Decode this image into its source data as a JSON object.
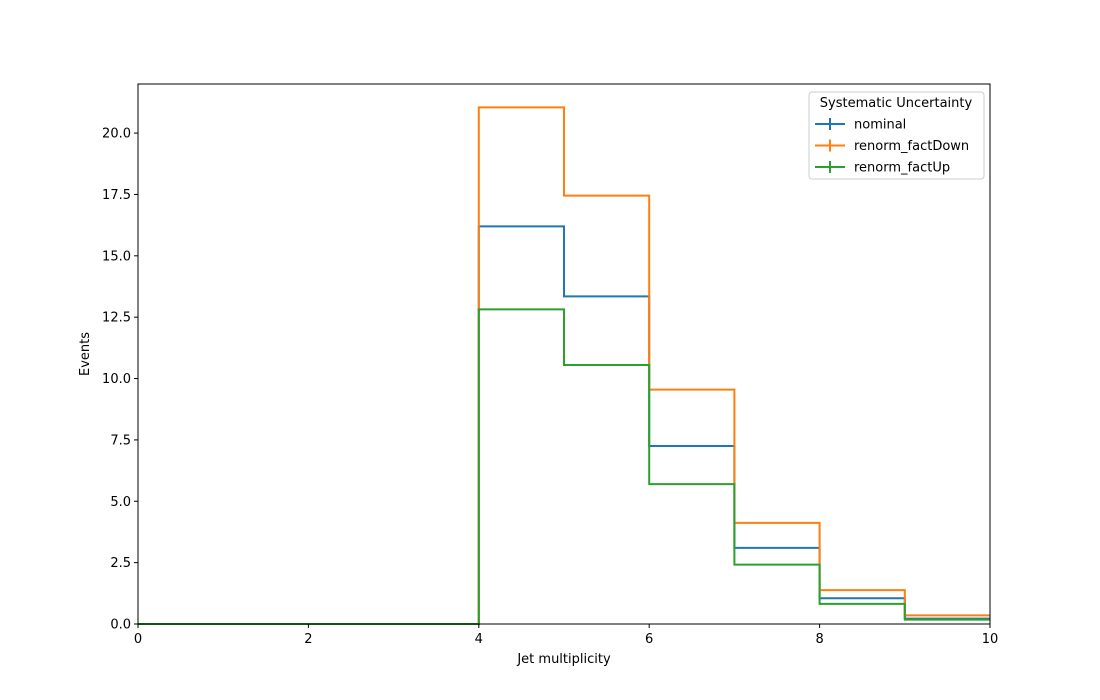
{
  "chart_data": {
    "type": "line",
    "drawstyle": "step",
    "title": "",
    "xlabel": "Jet multiplicity",
    "ylabel": "Events",
    "xlim": [
      0,
      10
    ],
    "ylim": [
      0,
      22
    ],
    "x_ticks": [
      0,
      2,
      4,
      6,
      8,
      10
    ],
    "x_tick_labels": [
      "0",
      "2",
      "4",
      "6",
      "8",
      "10"
    ],
    "y_ticks": [
      0,
      2.5,
      5,
      7.5,
      10,
      12.5,
      15,
      17.5,
      20
    ],
    "y_tick_labels": [
      "0.0",
      "2.5",
      "5.0",
      "7.5",
      "10.0",
      "12.5",
      "15.0",
      "17.5",
      "20.0"
    ],
    "grid": false,
    "bin_edges": [
      0,
      1,
      2,
      3,
      4,
      5,
      6,
      7,
      8,
      9,
      10
    ],
    "series": [
      {
        "name": "nominal",
        "color": "#1f77b4",
        "values": [
          0,
          0,
          0,
          0,
          16.2,
          13.35,
          7.25,
          3.1,
          1.05,
          0.22
        ]
      },
      {
        "name": "renorm_factDown",
        "color": "#ff7f0e",
        "values": [
          0,
          0,
          0,
          0,
          21.05,
          17.45,
          9.55,
          4.12,
          1.38,
          0.35
        ]
      },
      {
        "name": "renorm_factUp",
        "color": "#2ca02c",
        "values": [
          0,
          0,
          0,
          0,
          12.82,
          10.55,
          5.7,
          2.42,
          0.82,
          0.18
        ]
      }
    ],
    "legend": {
      "title": "Systematic Uncertainty",
      "placement": "top-right"
    }
  }
}
